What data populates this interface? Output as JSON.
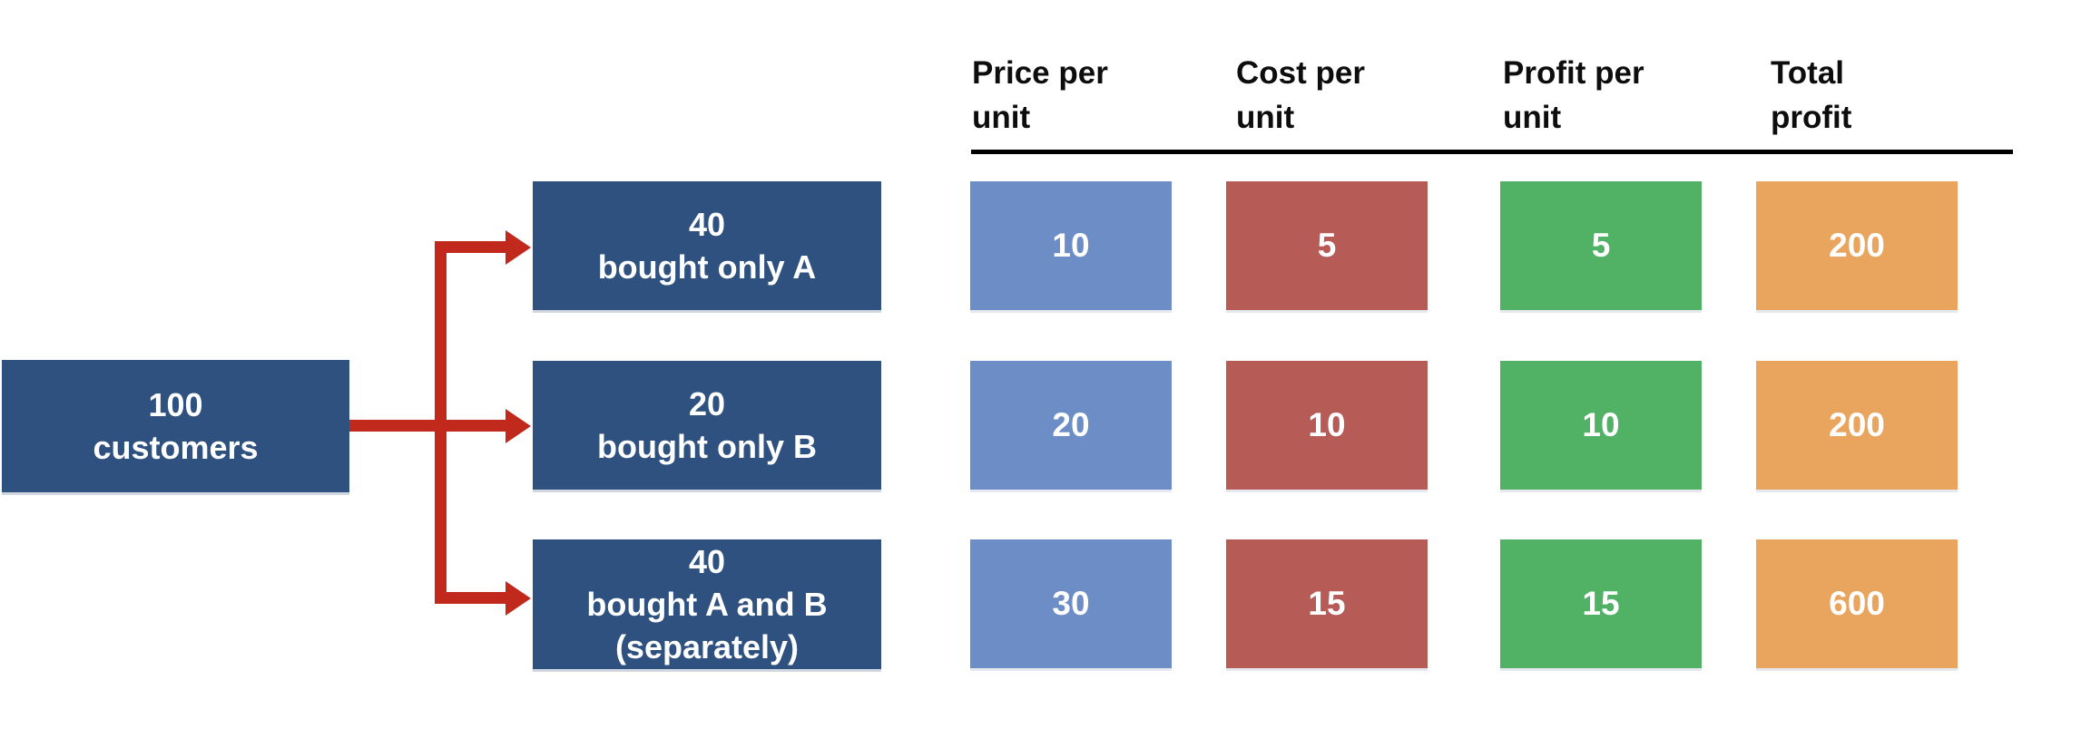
{
  "colors": {
    "dark-blue": "#2E5180",
    "col-blue": "#6C8DC6",
    "col-red": "#B75B57",
    "col-green": "#51B165",
    "col-orange": "#E9A45D",
    "arrow-red": "#C1291D",
    "header-text": "#0D0D0D",
    "box-text": "#FFFFFF",
    "rule": "#000000"
  },
  "flow": {
    "root": {
      "line1": "100",
      "line2": "customers"
    },
    "branches": [
      {
        "line1": "40",
        "line2": "bought only A"
      },
      {
        "line1": "20",
        "line2": "bought only B"
      },
      {
        "line1": "40",
        "line2": "bought A and B",
        "line3": "(separately)"
      }
    ]
  },
  "table": {
    "columns": [
      {
        "header_line1": "Price per",
        "header_line2": "unit"
      },
      {
        "header_line1": "Cost per",
        "header_line2": "unit"
      },
      {
        "header_line1": "Profit per",
        "header_line2": "unit"
      },
      {
        "header_line1": "Total",
        "header_line2": "profit"
      }
    ],
    "rows": [
      {
        "price": "10",
        "cost": "5",
        "profit": "5",
        "total": "200"
      },
      {
        "price": "20",
        "cost": "10",
        "profit": "10",
        "total": "200"
      },
      {
        "price": "30",
        "cost": "15",
        "profit": "15",
        "total": "600"
      }
    ]
  }
}
